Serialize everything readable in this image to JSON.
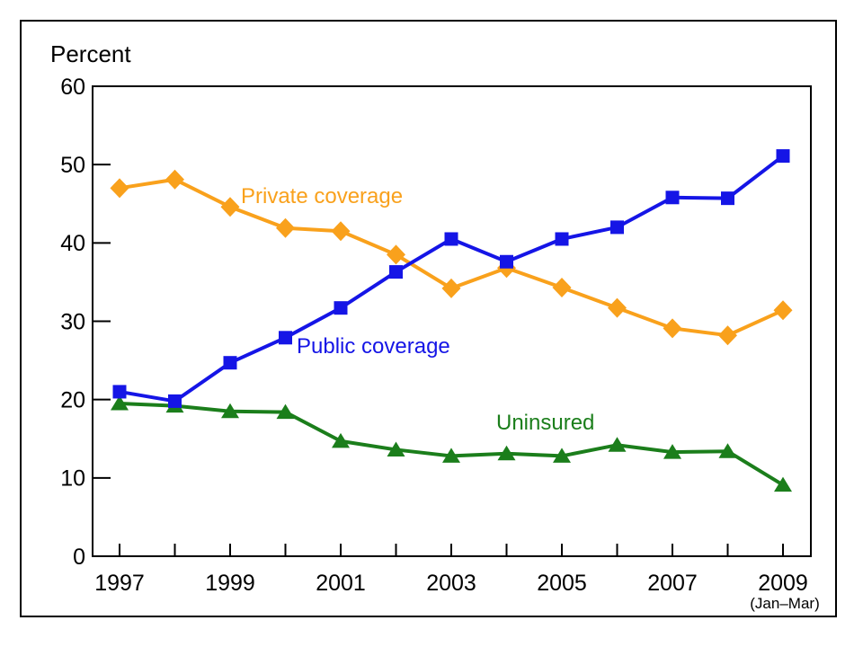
{
  "chart_data": {
    "type": "line",
    "title": "",
    "ylabel": "Percent",
    "xlabel": "",
    "x": [
      1997,
      1998,
      1999,
      2000,
      2001,
      2002,
      2003,
      2004,
      2005,
      2006,
      2007,
      2008,
      2009
    ],
    "x_tick_labels": [
      "1997",
      "1999",
      "2001",
      "2003",
      "2005",
      "2007",
      "2009"
    ],
    "x_sub_label": "(Jan–Mar)",
    "ylim": [
      0,
      60
    ],
    "yticks": [
      0,
      10,
      20,
      30,
      40,
      50,
      60
    ],
    "grid": "off",
    "legend": "inline-labels",
    "axis_color": "#000000",
    "series": [
      {
        "name": "Private coverage",
        "color": "#F9A11C",
        "marker": "diamond-icon",
        "values": [
          47.0,
          48.1,
          44.6,
          41.9,
          41.5,
          38.5,
          34.2,
          36.8,
          34.3,
          31.7,
          29.1,
          28.2,
          31.4
        ]
      },
      {
        "name": "Public coverage",
        "color": "#1515E6",
        "marker": "square-icon",
        "values": [
          21.0,
          19.8,
          24.7,
          27.9,
          31.7,
          36.3,
          40.5,
          37.6,
          40.5,
          42.0,
          45.8,
          45.7,
          51.1
        ]
      },
      {
        "name": "Uninsured",
        "color": "#1B7E1B",
        "marker": "triangle-icon",
        "values": [
          19.5,
          19.2,
          18.5,
          18.4,
          14.7,
          13.6,
          12.8,
          13.1,
          12.8,
          14.2,
          13.3,
          13.4,
          9.1
        ]
      }
    ]
  }
}
